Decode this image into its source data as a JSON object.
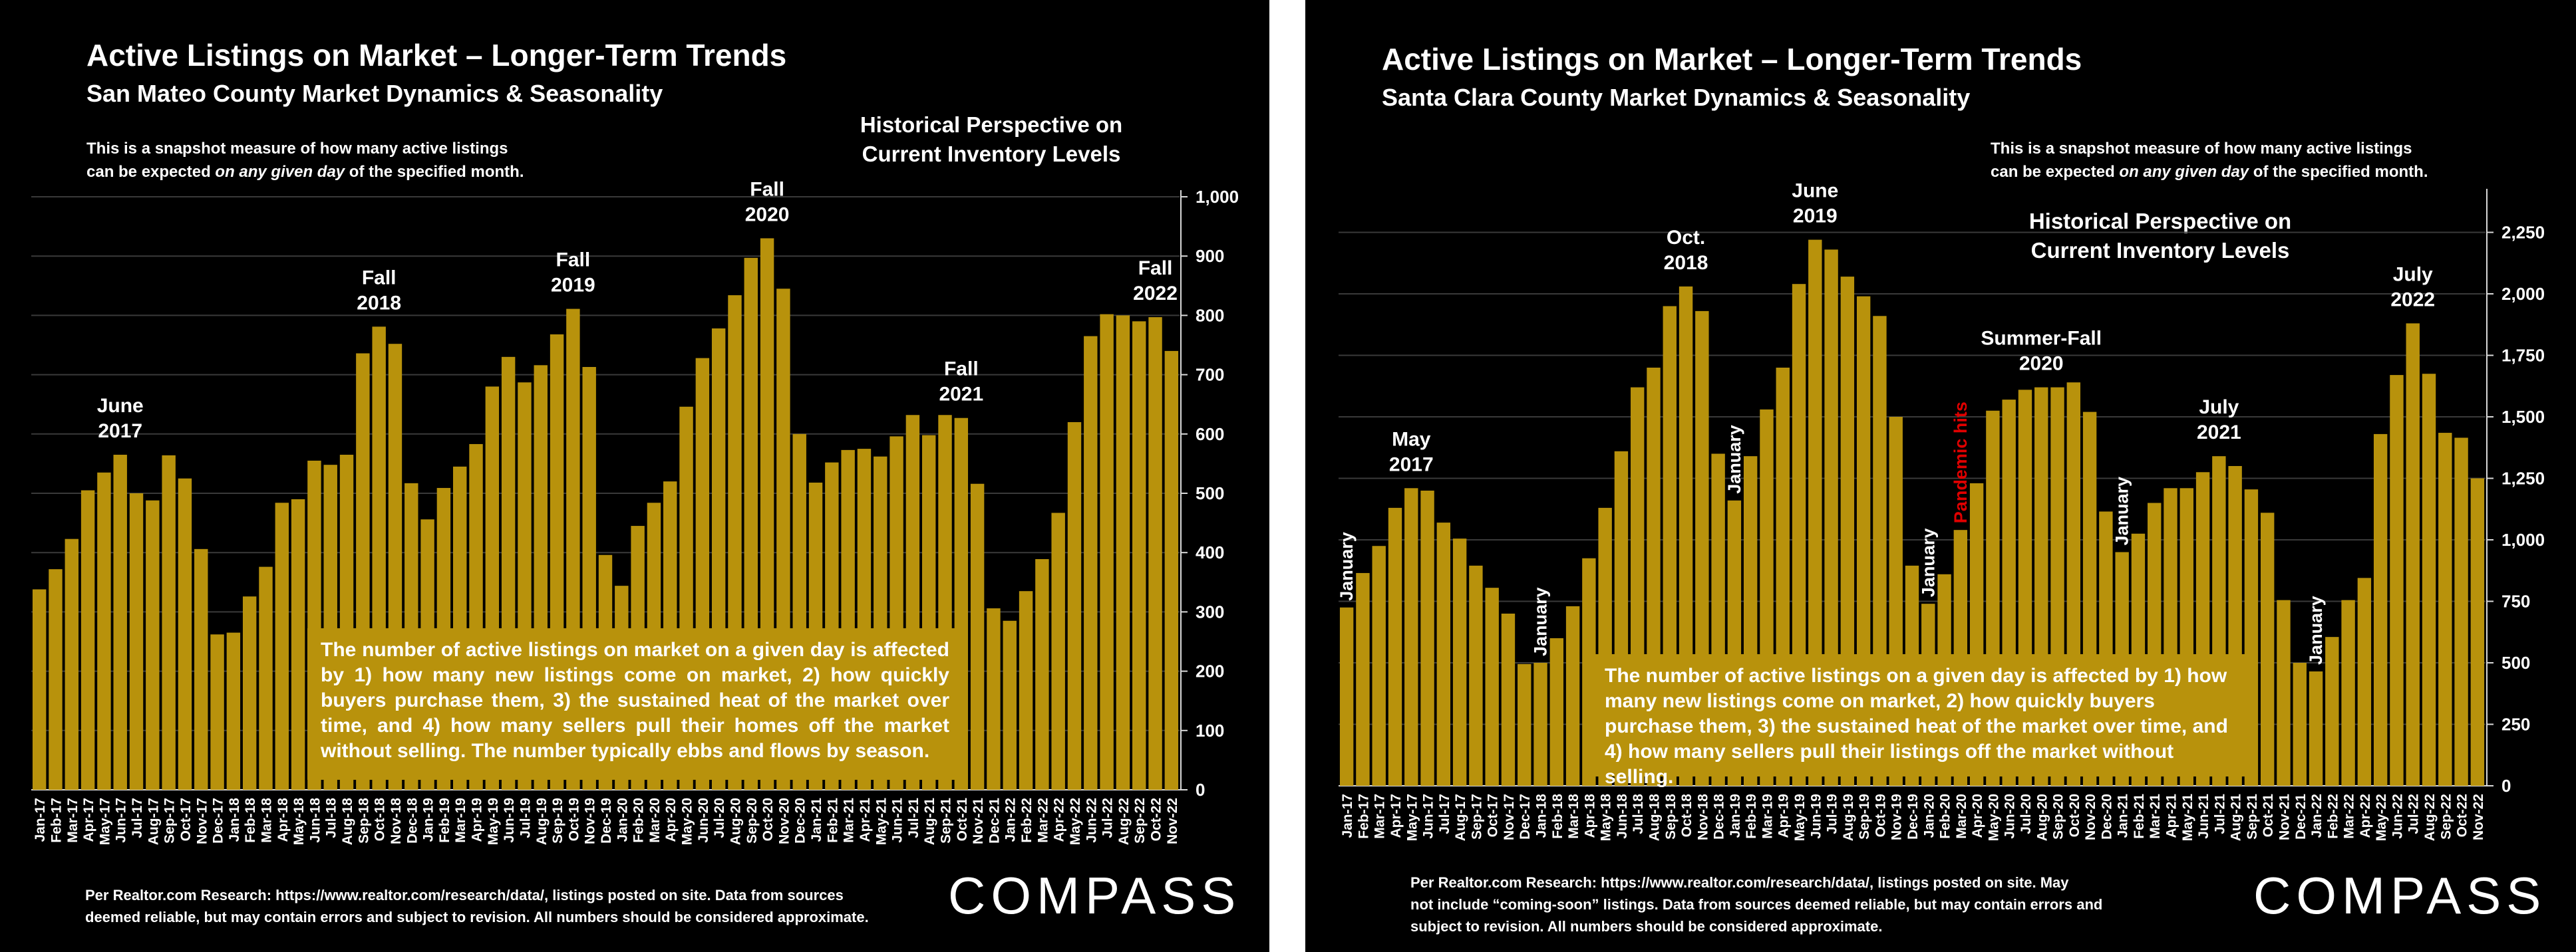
{
  "left": {
    "title": "Active Listings on Market – Longer-Term Trends",
    "subtitle": "San Mateo County Market Dynamics & Seasonality",
    "note_line1": "This is a snapshot measure of how many active listings",
    "note_line2_pre": "can be expected ",
    "note_line2_em": "on any given day",
    "note_line2_post": " of the specified month.",
    "hist_line1": "Historical Perspective on",
    "hist_line2": "Current Inventory Levels",
    "box_text": "The number of active listings on market on a given day is affected by 1) how many new listings come on market, 2) how quickly buyers purchase them, 3) the sustained heat of the market over time, and 4) how many sellers pull their homes off the market without selling. The number typically ebbs and flows by season.",
    "footer_line1": "Per Realtor.com Research:  https://www.realtor.com/research/data/, listings posted on site. Data from sources",
    "footer_line2": "deemed reliable, but may contain errors and subject to revision. All numbers should be considered approximate.",
    "logo": "COMPASS"
  },
  "right": {
    "title": "Active Listings on Market – Longer-Term Trends",
    "subtitle": "Santa Clara County Market Dynamics & Seasonality",
    "note_line1": "This is a snapshot measure of how many active listings",
    "note_line2_pre": "can be expected ",
    "note_line2_em": "on any given day",
    "note_line2_post": " of the specified month.",
    "hist_line1": "Historical Perspective on",
    "hist_line2": "Current Inventory Levels",
    "box_text": "The number of active listings on a given day is affected by 1) how many new listings come on market, 2) how quickly buyers purchase them, 3) the sustained heat of the market over time, and 4) how many sellers pull their listings off the market without selling.",
    "footer_line1": "Per Realtor.com Research:  https://www.realtor.com/research/data/, listings posted on site. May",
    "footer_line2": "not include “coming-soon” listings. Data from sources deemed reliable, but may contain errors and",
    "footer_line3": "subject to revision. All numbers should be considered approximate.",
    "logo": "COMPASS"
  },
  "colors": {
    "background": "#000000",
    "bar": "#b8920c",
    "text": "#ffffff",
    "pandemic_label": "#e00000"
  },
  "chart_data": [
    {
      "type": "bar",
      "title": "Active Listings on Market – Longer-Term Trends",
      "subtitle": "San Mateo County Market Dynamics & Seasonality",
      "categories": [
        "Jan-17",
        "Feb-17",
        "Mar-17",
        "Apr-17",
        "May-17",
        "Jun-17",
        "Jul-17",
        "Aug-17",
        "Sep-17",
        "Oct-17",
        "Nov-17",
        "Dec-17",
        "Jan-18",
        "Feb-18",
        "Mar-18",
        "Apr-18",
        "May-18",
        "Jun-18",
        "Jul-18",
        "Aug-18",
        "Sep-18",
        "Oct-18",
        "Nov-18",
        "Dec-18",
        "Jan-19",
        "Feb-19",
        "Mar-19",
        "Apr-19",
        "May-19",
        "Jun-19",
        "Jul-19",
        "Aug-19",
        "Sep-19",
        "Oct-19",
        "Nov-19",
        "Dec-19",
        "Jan-20",
        "Feb-20",
        "Mar-20",
        "Apr-20",
        "May-20",
        "Jun-20",
        "Jul-20",
        "Aug-20",
        "Sep-20",
        "Oct-20",
        "Nov-20",
        "Dec-20",
        "Jan-21",
        "Feb-21",
        "Mar-21",
        "Apr-21",
        "May-21",
        "Jun-21",
        "Jul-21",
        "Aug-21",
        "Sep-21",
        "Oct-21",
        "Nov-21",
        "Dec-21",
        "Jan-22",
        "Feb-22",
        "Mar-22",
        "Apr-22",
        "May-22",
        "Jun-22",
        "Jul-22",
        "Aug-22",
        "Sep-22",
        "Oct-22",
        "Nov-22"
      ],
      "values": [
        338,
        372,
        423,
        505,
        535,
        565,
        500,
        488,
        564,
        525,
        406,
        262,
        265,
        326,
        376,
        484,
        490,
        555,
        548,
        565,
        736,
        781,
        752,
        517,
        456,
        509,
        545,
        583,
        680,
        730,
        687,
        716,
        768,
        811,
        713,
        396,
        344,
        445,
        484,
        520,
        646,
        728,
        778,
        834,
        897,
        930,
        845,
        600,
        518,
        552,
        573,
        575,
        562,
        596,
        632,
        598,
        632,
        627,
        516,
        306,
        285,
        335,
        389,
        467,
        620,
        765,
        802,
        800,
        790,
        797,
        740
      ],
      "ylim": [
        0,
        1000
      ],
      "yticks": [
        "0",
        "100",
        "200",
        "300",
        "400",
        "500",
        "600",
        "700",
        "800",
        "900",
        "1,000"
      ],
      "annotations": [
        {
          "text": [
            "June",
            "2017"
          ],
          "category": "Jun-17"
        },
        {
          "text": [
            "Fall",
            "2018"
          ],
          "category": "Oct-18"
        },
        {
          "text": [
            "Fall",
            "2019"
          ],
          "category": "Oct-19"
        },
        {
          "text": [
            "Fall",
            "2020"
          ],
          "category": "Oct-20"
        },
        {
          "text": [
            "Fall",
            "2021"
          ],
          "category": "Oct-21"
        },
        {
          "text": [
            "Fall",
            "2022"
          ],
          "category": "Oct-22"
        }
      ]
    },
    {
      "type": "bar",
      "title": "Active Listings on Market – Longer-Term Trends",
      "subtitle": "Santa Clara County Market Dynamics & Seasonality",
      "categories": [
        "Jan-17",
        "Feb-17",
        "Mar-17",
        "Apr-17",
        "May-17",
        "Jun-17",
        "Jul-17",
        "Aug-17",
        "Sep-17",
        "Oct-17",
        "Nov-17",
        "Dec-17",
        "Jan-18",
        "Feb-18",
        "Mar-18",
        "Apr-18",
        "May-18",
        "Jun-18",
        "Jul-18",
        "Aug-18",
        "Sep-18",
        "Oct-18",
        "Nov-18",
        "Dec-18",
        "Jan-19",
        "Feb-19",
        "Mar-19",
        "Apr-19",
        "May-19",
        "Jun-19",
        "Jul-19",
        "Aug-19",
        "Sep-19",
        "Oct-19",
        "Nov-19",
        "Dec-19",
        "Jan-20",
        "Feb-20",
        "Mar-20",
        "Apr-20",
        "May-20",
        "Jun-20",
        "Jul-20",
        "Aug-20",
        "Sep-20",
        "Oct-20",
        "Nov-20",
        "Dec-20",
        "Jan-21",
        "Feb-21",
        "Mar-21",
        "Apr-21",
        "May-21",
        "Jun-21",
        "Jul-21",
        "Aug-21",
        "Sep-21",
        "Oct-21",
        "Nov-21",
        "Dec-21",
        "Jan-22",
        "Feb-22",
        "Mar-22",
        "Apr-22",
        "May-22",
        "Jun-22",
        "Jul-22",
        "Aug-22",
        "Sep-22",
        "Oct-22",
        "Nov-22"
      ],
      "values": [
        725,
        865,
        975,
        1130,
        1210,
        1200,
        1070,
        1005,
        895,
        805,
        700,
        495,
        500,
        600,
        730,
        925,
        1130,
        1360,
        1620,
        1700,
        1950,
        2030,
        1930,
        1350,
        1160,
        1340,
        1530,
        1700,
        2040,
        2220,
        2180,
        2070,
        1990,
        1910,
        1500,
        895,
        740,
        860,
        1040,
        1230,
        1525,
        1570,
        1610,
        1620,
        1620,
        1640,
        1520,
        1115,
        950,
        1025,
        1150,
        1210,
        1210,
        1275,
        1340,
        1300,
        1205,
        1110,
        755,
        500,
        465,
        605,
        755,
        845,
        1430,
        1670,
        1880,
        1675,
        1435,
        1415,
        1250
      ],
      "ylim": [
        0,
        2400
      ],
      "yticks": [
        "0",
        "250",
        "500",
        "750",
        "1,000",
        "1,250",
        "1,500",
        "1,750",
        "2,000",
        "2,250"
      ],
      "annotations": [
        {
          "text": [
            "May",
            "2017"
          ],
          "category": "May-17"
        },
        {
          "text": [
            "Oct.",
            "2018"
          ],
          "category": "Oct-18"
        },
        {
          "text": [
            "June",
            "2019"
          ],
          "category": "Jun-19"
        },
        {
          "text": [
            "Summer-Fall",
            "2020"
          ],
          "category": "Aug-20"
        },
        {
          "text": [
            "July",
            "2021"
          ],
          "category": "Jul-21"
        },
        {
          "text": [
            "July",
            "2022"
          ],
          "category": "Jul-22"
        }
      ],
      "vertical_annotations": [
        {
          "text": "January",
          "category": "Jan-17"
        },
        {
          "text": "January",
          "category": "Jan-18"
        },
        {
          "text": "January",
          "category": "Jan-19"
        },
        {
          "text": "January",
          "category": "Jan-20"
        },
        {
          "text": "Pandemic hits",
          "category": "Mar-20",
          "color": "#e00000"
        },
        {
          "text": "January",
          "category": "Jan-21"
        },
        {
          "text": "January",
          "category": "Jan-22"
        }
      ]
    }
  ]
}
